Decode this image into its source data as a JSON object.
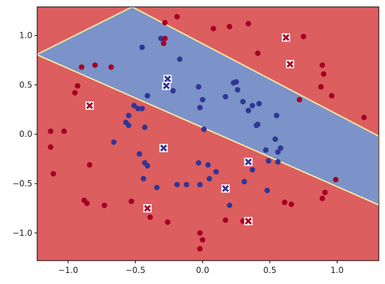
{
  "chart_data": {
    "type": "scatter",
    "title": "",
    "xlabel": "",
    "ylabel": "",
    "xlim": [
      -1.23,
      1.31
    ],
    "ylim": [
      -1.28,
      1.29
    ],
    "grid": false,
    "x_ticks": [
      -1.0,
      -0.5,
      0.0,
      0.5,
      1.0
    ],
    "x_tick_labels": [
      "−1.0",
      "−0.5",
      "0.0",
      "0.5",
      "1.0"
    ],
    "y_ticks": [
      -1.0,
      -0.5,
      0.0,
      0.5,
      1.0
    ],
    "y_tick_labels": [
      "−1.0",
      "−0.5",
      "0.0",
      "0.5",
      "1.0"
    ],
    "background_regions": {
      "description": "decision regions",
      "inner_band_color": "#7b93c8",
      "outer_color": "#dc5e5f",
      "boundary_color": "#f4e6a7",
      "upper_boundary": [
        [
          -1.23,
          0.8
        ],
        [
          -0.2,
          1.29
        ]
      ],
      "lower_boundary_note": "boundary descends from about (-1.23, 0.78) through (0.0, -0.35) to (1.31, -0.78) for the lower edge of the band"
    },
    "series": [
      {
        "values": "class-0",
        "color": "#313695",
        "marker": "circle",
        "points": [
          [
            -0.45,
            0.88
          ],
          [
            -0.31,
            0.97
          ],
          [
            -0.17,
            0.76
          ],
          [
            -0.41,
            0.39
          ],
          [
            -0.28,
            0.52
          ],
          [
            -0.22,
            0.44
          ],
          [
            -0.03,
            0.48
          ],
          [
            0.0,
            0.35
          ],
          [
            -0.02,
            0.27
          ],
          [
            0.01,
            0.05
          ],
          [
            -0.51,
            0.29
          ],
          [
            -0.48,
            0.26
          ],
          [
            -0.45,
            0.26
          ],
          [
            -0.55,
            0.19
          ],
          [
            -0.57,
            0.12
          ],
          [
            -0.55,
            0.09
          ],
          [
            -0.43,
            0.07
          ],
          [
            -0.66,
            -0.08
          ],
          [
            -0.47,
            -0.2
          ],
          [
            -0.43,
            -0.29
          ],
          [
            -0.41,
            -0.32
          ],
          [
            -0.44,
            -0.45
          ],
          [
            -0.34,
            -0.54
          ],
          [
            -0.19,
            -0.51
          ],
          [
            -0.12,
            -0.51
          ],
          [
            -0.02,
            -0.51
          ],
          [
            0.05,
            -0.45
          ],
          [
            -0.03,
            -0.29
          ],
          [
            0.04,
            -0.31
          ],
          [
            0.1,
            -0.38
          ],
          [
            0.2,
            -0.72
          ],
          [
            0.17,
            0.38
          ],
          [
            0.23,
            0.52
          ],
          [
            0.25,
            0.53
          ],
          [
            0.26,
            0.45
          ],
          [
            0.3,
            0.33
          ],
          [
            0.34,
            0.24
          ],
          [
            0.37,
            0.29
          ],
          [
            0.42,
            0.31
          ],
          [
            0.41,
            0.1
          ],
          [
            0.4,
            0.09
          ],
          [
            0.55,
            0.19
          ],
          [
            0.54,
            -0.05
          ],
          [
            0.47,
            -0.16
          ],
          [
            0.49,
            -0.27
          ],
          [
            0.56,
            -0.18
          ],
          [
            0.58,
            -0.14
          ],
          [
            0.56,
            -0.28
          ],
          [
            0.31,
            -0.48
          ],
          [
            0.37,
            -0.36
          ],
          [
            0.48,
            -0.57
          ]
        ]
      },
      {
        "values": "class-1",
        "color": "#a50026",
        "marker": "circle",
        "points": [
          [
            -0.28,
            1.13
          ],
          [
            -0.19,
            1.19
          ],
          [
            -0.28,
            0.97
          ],
          [
            -0.29,
            0.92
          ],
          [
            -0.9,
            0.68
          ],
          [
            -0.8,
            0.7
          ],
          [
            -0.68,
            0.68
          ],
          [
            -0.93,
            0.49
          ],
          [
            -0.95,
            0.42
          ],
          [
            -1.13,
            0.03
          ],
          [
            -1.03,
            0.03
          ],
          [
            -1.13,
            -0.13
          ],
          [
            -1.11,
            -0.4
          ],
          [
            -0.84,
            -0.31
          ],
          [
            -0.88,
            -0.67
          ],
          [
            -0.86,
            -0.7
          ],
          [
            -0.73,
            -0.72
          ],
          [
            -0.53,
            -0.68
          ],
          [
            -0.39,
            -0.84
          ],
          [
            -0.26,
            -0.89
          ],
          [
            -0.02,
            -1.0
          ],
          [
            -0.02,
            -1.16
          ],
          [
            0.0,
            -1.07
          ],
          [
            0.17,
            -0.87
          ],
          [
            0.3,
            -0.88
          ],
          [
            0.08,
            1.07
          ],
          [
            0.2,
            1.09
          ],
          [
            0.34,
            1.12
          ],
          [
            0.41,
            0.82
          ],
          [
            0.72,
            0.35
          ],
          [
            0.75,
            0.99
          ],
          [
            0.89,
            0.7
          ],
          [
            0.9,
            0.61
          ],
          [
            0.88,
            0.48
          ],
          [
            0.96,
            0.39
          ],
          [
            1.2,
            0.17
          ],
          [
            0.99,
            -0.46
          ],
          [
            0.91,
            -0.59
          ],
          [
            0.89,
            -0.65
          ],
          [
            0.61,
            -0.69
          ],
          [
            0.66,
            -0.71
          ]
        ]
      },
      {
        "values": "highlighted-class-0",
        "color": "#313695",
        "marker": "x-in-square",
        "points": [
          [
            -0.26,
            0.56
          ],
          [
            -0.27,
            0.49
          ],
          [
            -0.29,
            -0.14
          ],
          [
            0.34,
            -0.28
          ],
          [
            0.17,
            -0.55
          ]
        ]
      },
      {
        "values": "highlighted-class-1",
        "color": "#a50026",
        "marker": "x-in-square",
        "points": [
          [
            -0.84,
            0.29
          ],
          [
            -0.41,
            -0.75
          ],
          [
            0.34,
            -0.88
          ],
          [
            0.62,
            0.98
          ],
          [
            0.65,
            0.71
          ]
        ]
      }
    ]
  }
}
